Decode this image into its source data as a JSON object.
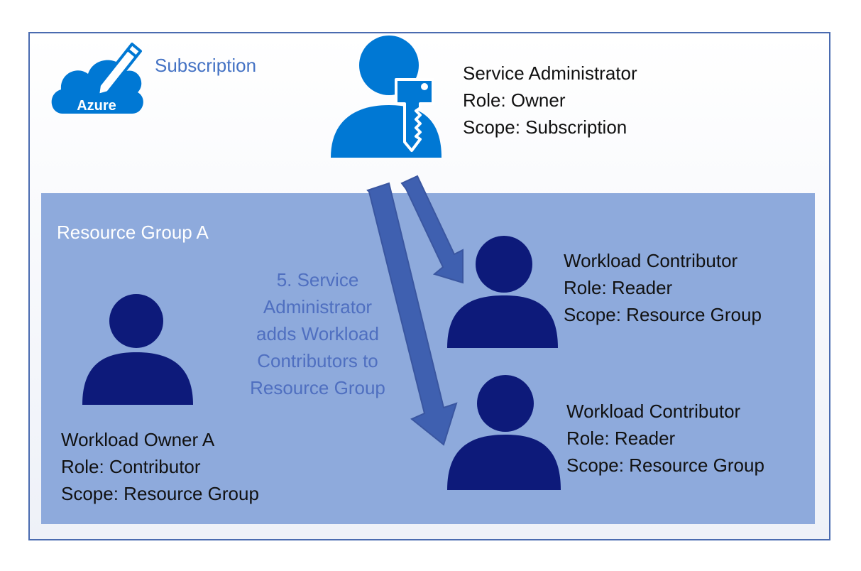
{
  "subscription": {
    "label": "Subscription",
    "logo_text": "Azure"
  },
  "service_admin": {
    "name": "Service Administrator",
    "role": "Role: Owner",
    "scope": "Scope: Subscription",
    "icon": "user-key-icon"
  },
  "resource_group": {
    "label": "Resource Group A"
  },
  "step_note": "5. Service Administrator adds Workload Contributors to Resource Group",
  "workload_owner": {
    "name": "Workload Owner A",
    "role": "Role: Contributor",
    "scope": "Scope: Resource Group"
  },
  "contributors": [
    {
      "name": "Workload Contributor",
      "role": "Role: Reader",
      "scope": "Scope: Resource Group"
    },
    {
      "name": "Workload Contributor",
      "role": "Role: Reader",
      "scope": "Scope: Resource Group"
    }
  ],
  "colors": {
    "azure_blue": "#0078d4",
    "navy_user": "#0d1a7a",
    "arrow": "#3f60b0",
    "rg_fill": "#8eaadc",
    "frame_border": "#4a6bb0"
  }
}
